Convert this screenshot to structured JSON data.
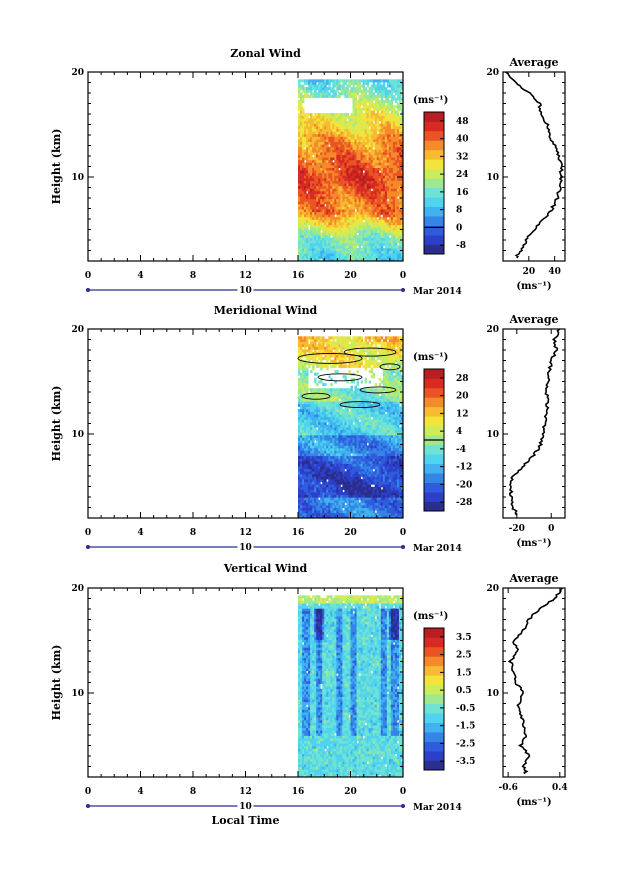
{
  "colors": {
    "colormap": [
      "#2b2e8c",
      "#2c3fc8",
      "#2f5cdc",
      "#3585e6",
      "#3fb2ef",
      "#4fd3ef",
      "#6fe3d3",
      "#9ee88f",
      "#ccec5a",
      "#f2e43c",
      "#f7bb32",
      "#f58a2a",
      "#ea5424",
      "#d62a22",
      "#b81e22"
    ]
  },
  "chart_data": [
    {
      "type": "heatmap",
      "panel": "zonal",
      "title": "Zonal Wind",
      "ylabel": "Height (km)",
      "ylim": [
        2,
        20
      ],
      "yticks": [
        10,
        20
      ],
      "xlim": [
        0,
        24
      ],
      "xticks": [
        "0",
        "4",
        "8",
        "12",
        "16",
        "20",
        "0"
      ],
      "date_axis": {
        "label": "10",
        "month": "Mar 2014"
      },
      "data_start_hour": 16,
      "colorbar": {
        "unit": "(ms⁻¹)",
        "ticks": [
          "48",
          "40",
          "32",
          "24",
          "16",
          "8",
          "0",
          "-8"
        ],
        "range": [
          -12,
          52
        ]
      },
      "profile_description": "height-time map of zonal wind from 16 LT onward; strong westerlies of 40-52 m/s between 7 and 14 km, weaker near surface and above 17 km",
      "average": {
        "title": "Average",
        "xlabel": "(ms⁻¹)",
        "xticks": [
          "20",
          "40"
        ],
        "xlim": [
          0,
          48
        ],
        "height": [
          2.3,
          3,
          4,
          5,
          6,
          7,
          8,
          9,
          10,
          11,
          12,
          13,
          14,
          15,
          16,
          17,
          18,
          19,
          20
        ],
        "value": [
          10,
          14,
          18,
          24,
          32,
          38,
          42,
          44,
          45,
          45,
          43,
          40,
          36,
          34,
          30,
          28,
          20,
          10,
          2
        ]
      }
    },
    {
      "type": "heatmap",
      "panel": "meridional",
      "title": "Meridional Wind",
      "ylabel": "Height (km)",
      "ylim": [
        2,
        20
      ],
      "yticks": [
        10,
        20
      ],
      "xlim": [
        0,
        24
      ],
      "xticks": [
        "0",
        "4",
        "8",
        "12",
        "16",
        "20",
        "0"
      ],
      "date_axis": {
        "label": "10",
        "month": "Mar 2014"
      },
      "data_start_hour": 16,
      "colorbar": {
        "unit": "(ms⁻¹)",
        "ticks": [
          "28",
          "20",
          "12",
          "4",
          "-4",
          "-12",
          "-20",
          "-28"
        ],
        "range": [
          -32,
          32
        ]
      },
      "profile_description": "meridional wind mostly negative below 12 km (down to -28 m/s near 5-7 km), near zero to positive above 15 km",
      "average": {
        "title": "Average",
        "xlabel": "(ms⁻¹)",
        "xticks": [
          "-20",
          "0"
        ],
        "xlim": [
          -28,
          8
        ],
        "height": [
          2.3,
          3,
          4,
          5,
          6,
          7,
          8,
          9,
          10,
          11,
          12,
          13,
          14,
          15,
          16,
          17,
          18,
          19,
          20
        ],
        "value": [
          -20,
          -22,
          -23,
          -24,
          -22,
          -16,
          -10,
          -6,
          -5,
          -4,
          -3,
          -2,
          -3,
          -2,
          -1,
          0,
          3,
          2,
          5
        ]
      }
    },
    {
      "type": "heatmap",
      "panel": "vertical",
      "title": "Vertical Wind",
      "ylabel": "Height (km)",
      "ylim": [
        2,
        20
      ],
      "yticks": [
        10,
        20
      ],
      "xlim": [
        0,
        24
      ],
      "xticks": [
        "0",
        "4",
        "8",
        "12",
        "16",
        "20",
        "0"
      ],
      "date_axis": {
        "label": "10",
        "month": "Mar 2014"
      },
      "data_start_hour": 16,
      "colorbar": {
        "unit": "(ms⁻¹)",
        "ticks": [
          "3.5",
          "2.5",
          "1.5",
          "0.5",
          "-0.5",
          "-1.5",
          "-2.5",
          "-3.5"
        ],
        "range": [
          -4,
          4
        ]
      },
      "profile_description": "vertical wind mostly weakly negative (-0.5 to -1.5 m/s) with downward cells near 17-18 km, slightly positive near 19-20 km",
      "xlabel": "Local Time",
      "average": {
        "title": "Average",
        "xlabel": "(ms⁻¹)",
        "xticks": [
          "-0.6",
          "0.4"
        ],
        "xlim": [
          -0.7,
          0.5
        ],
        "height": [
          2.3,
          3,
          4,
          5,
          6,
          7,
          8,
          9,
          10,
          11,
          12,
          13,
          14,
          15,
          16,
          17,
          18,
          19,
          20
        ],
        "value": [
          -0.25,
          -0.3,
          -0.2,
          -0.35,
          -0.25,
          -0.3,
          -0.35,
          -0.4,
          -0.3,
          -0.45,
          -0.5,
          -0.55,
          -0.4,
          -0.5,
          -0.3,
          -0.2,
          0.0,
          0.3,
          0.45
        ]
      }
    }
  ]
}
